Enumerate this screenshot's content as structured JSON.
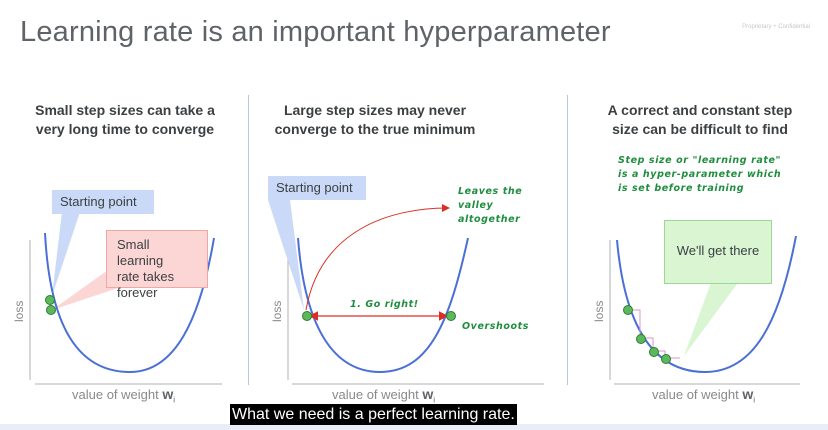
{
  "slide": {
    "title": "Learning rate is an important hyperparameter",
    "confidential": "Proprietary + Confidential"
  },
  "panels": [
    {
      "heading_line1": "Small step sizes can take a",
      "heading_line2": "very long time to converge",
      "callout_start": "Starting point",
      "callout_lr_line1": "Small learning",
      "callout_lr_line2": "rate takes",
      "callout_lr_line3": "forever",
      "ylabel": "loss",
      "xlabel": "value of weight",
      "xvar": "w",
      "xsub": "i"
    },
    {
      "heading_line1": "Large step sizes may never",
      "heading_line2": "converge to the true minimum",
      "callout_start": "Starting point",
      "note_leaves_1": "Leaves the",
      "note_leaves_2": "valley",
      "note_leaves_3": "altogether",
      "note_go_right": "1. Go right!",
      "note_overshoots": "Overshoots",
      "ylabel": "loss",
      "xlabel": "value of weight",
      "xvar": "w",
      "xsub": "i"
    },
    {
      "heading_line1": "A correct and constant step",
      "heading_line2": "size can be difficult to find",
      "note_1": "Step size or \"learning rate\"",
      "note_2": "is a hyper-parameter which",
      "note_3": "is set before training",
      "callout_get_there": "We'll get there",
      "ylabel": "loss",
      "xlabel": "value of weight",
      "xvar": "w",
      "xsub": "i"
    }
  ],
  "subtitle": "What we need is a perfect learning rate.",
  "colors": {
    "curve": "#4a6fd6",
    "point": "#5cb85c",
    "arrow_red": "#d93025",
    "note_green": "#1e8e3e"
  }
}
